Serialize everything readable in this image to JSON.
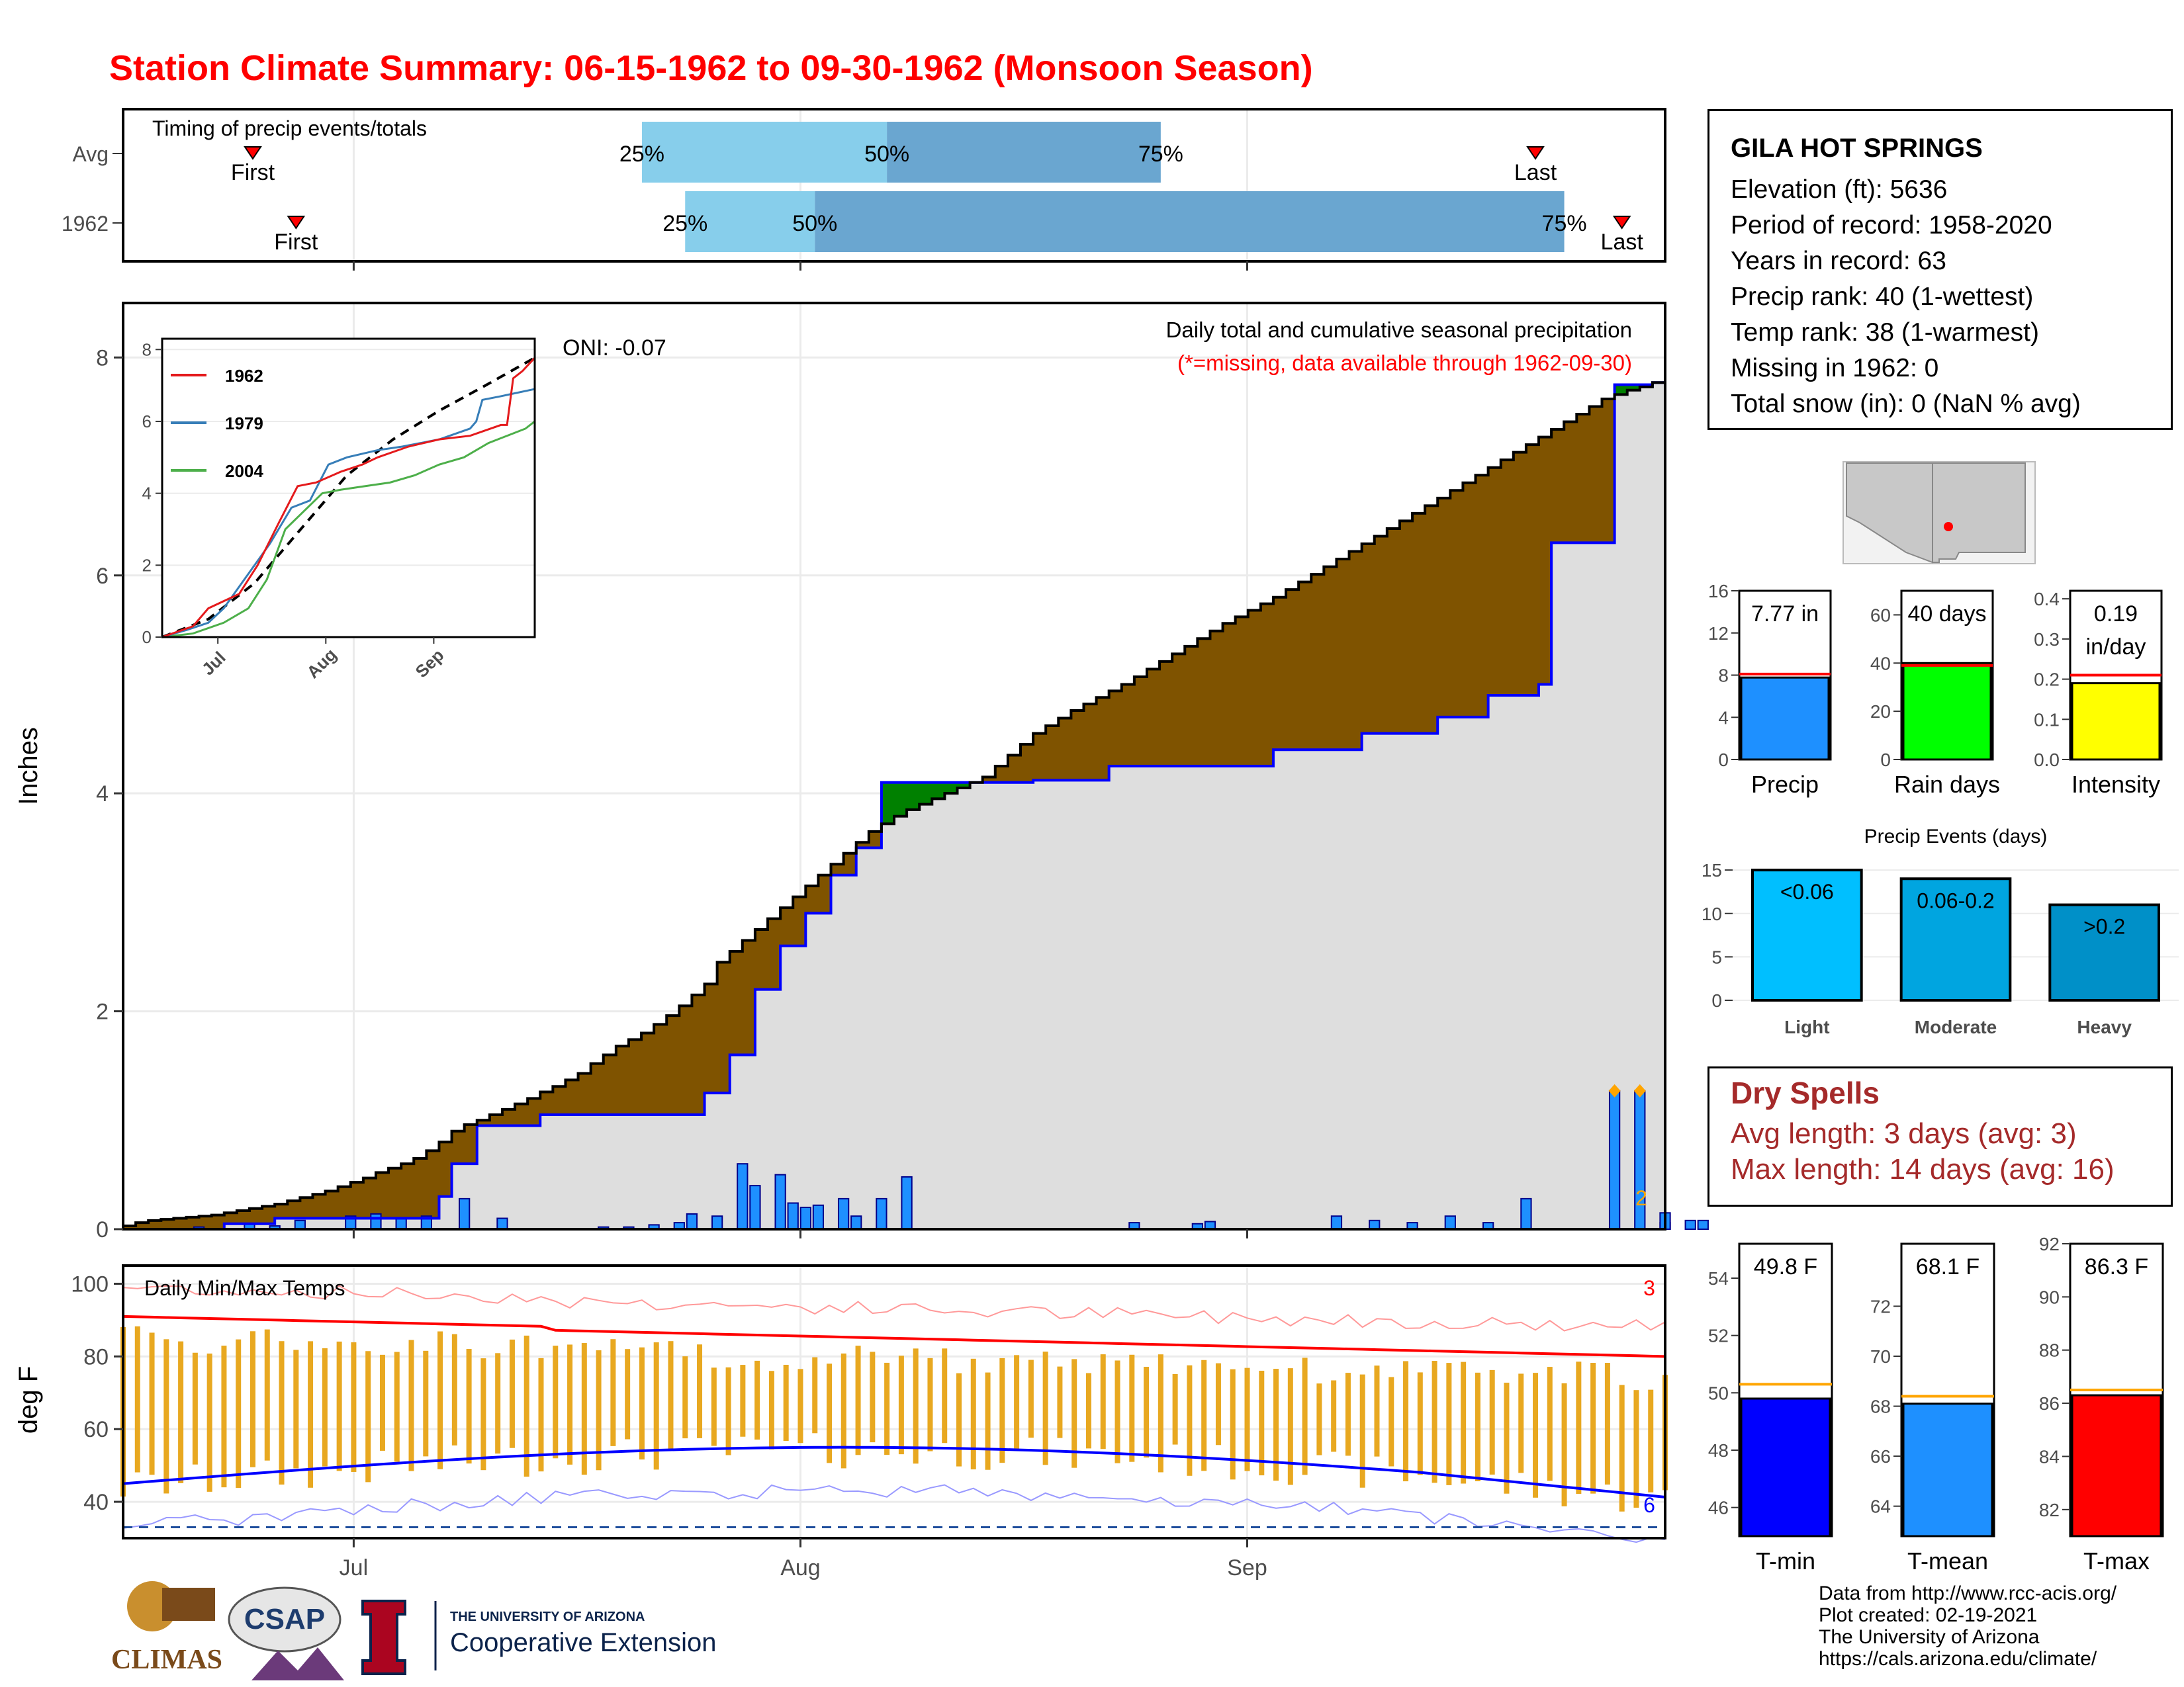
{
  "page": {
    "title": "Station Climate Summary: 06-15-1962 to 09-30-1962 (Monsoon Season)"
  },
  "colors": {
    "title": "#ff0000",
    "cumulative_above_avg": "#008000",
    "cumulative_below_avg": "#7f5300",
    "daily_bar": "#1e90ff",
    "avg_cumulative_line": "#0000ff",
    "tmax_avg": "#ff0000",
    "tmin_avg": "#0000ff",
    "temp_range_bar": "#e8a820",
    "quartile_light": "#87ceeb",
    "quartile_dark": "#6aa6d0"
  },
  "station": {
    "name": "GILA HOT SPRINGS",
    "lines": [
      "Elevation (ft): 5636",
      "Period of record: 1958-2020",
      "Years in record: 63",
      "Precip rank: 40 (1-wettest)",
      "Temp rank: 38 (1-warmest)",
      "Missing in 1962: 0",
      "Total snow (in): 0 (NaN % avg)"
    ]
  },
  "dry_spells": {
    "title": "Dry Spells",
    "avg_length": "Avg length: 3 days (avg: 3)",
    "max_length": "Max length: 14 days (avg: 16)"
  },
  "credits": [
    "Data from http://www.rcc-acis.org/",
    "Plot created: 02-19-2021",
    "The University of Arizona",
    "https://cals.arizona.edu/climate/"
  ],
  "logos": {
    "climas": "CLIMAS",
    "csap": "CSAP",
    "ua_top": "THE UNIVERSITY OF ARIZONA",
    "ua_bottom": "Cooperative Extension"
  },
  "chart_data": [
    {
      "id": "timing",
      "type": "bar",
      "title": "Timing of precip events/totals",
      "rows": [
        "Avg",
        "1962"
      ],
      "quartile_labels": [
        "25%",
        "50%",
        "75%"
      ],
      "event_labels": [
        "First",
        "Last"
      ],
      "avg": {
        "first": "06-24",
        "q25": "07-21",
        "q50": "08-07",
        "q75": "08-26",
        "last": "09-21"
      },
      "year": {
        "first": "06-27",
        "q25": "07-24",
        "q50": "08-02",
        "q75": "09-23",
        "last": "09-27"
      }
    },
    {
      "id": "precip",
      "type": "area",
      "title": "Daily total and cumulative seasonal precipitation",
      "subtitle": "(*=missing, data available through 1962-09-30)",
      "oni_label": "ONI: -0.07",
      "ylabel": "Inches",
      "ylim": [
        0,
        8.5
      ],
      "yticks": [
        0,
        2,
        4,
        6,
        8
      ],
      "x_ticks": [
        "Jul",
        "Aug",
        "Sep"
      ],
      "date_range": [
        "06-15",
        "09-30"
      ],
      "corner_label": "2",
      "cumulative_1962": [
        [
          0,
          0.03
        ],
        [
          1,
          0.06
        ],
        [
          2,
          0.08
        ],
        [
          3,
          0.09
        ],
        [
          4,
          0.1
        ],
        [
          5,
          0.11
        ],
        [
          6,
          0.12
        ],
        [
          7,
          0.13
        ],
        [
          8,
          0.15
        ],
        [
          9,
          0.17
        ],
        [
          10,
          0.19
        ],
        [
          11,
          0.21
        ],
        [
          12,
          0.23
        ],
        [
          13,
          0.26
        ],
        [
          14,
          0.29
        ],
        [
          15,
          0.32
        ],
        [
          16,
          0.35
        ],
        [
          17,
          0.39
        ],
        [
          18,
          0.43
        ],
        [
          19,
          0.47
        ],
        [
          20,
          0.52
        ],
        [
          21,
          0.56
        ],
        [
          22,
          0.6
        ],
        [
          23,
          0.65
        ],
        [
          24,
          0.72
        ],
        [
          25,
          0.8
        ],
        [
          26,
          0.9
        ],
        [
          27,
          0.96
        ],
        [
          28,
          1.0
        ],
        [
          29,
          1.05
        ],
        [
          30,
          1.1
        ],
        [
          31,
          1.15
        ],
        [
          32,
          1.2
        ],
        [
          33,
          1.26
        ],
        [
          34,
          1.31
        ],
        [
          35,
          1.37
        ],
        [
          36,
          1.43
        ],
        [
          37,
          1.52
        ],
        [
          38,
          1.6
        ],
        [
          39,
          1.68
        ],
        [
          40,
          1.74
        ],
        [
          41,
          1.8
        ],
        [
          42,
          1.88
        ],
        [
          43,
          1.96
        ],
        [
          44,
          2.05
        ],
        [
          45,
          2.15
        ],
        [
          46,
          2.25
        ],
        [
          47,
          2.45
        ],
        [
          48,
          2.55
        ],
        [
          49,
          2.65
        ],
        [
          50,
          2.75
        ],
        [
          51,
          2.85
        ],
        [
          52,
          2.95
        ],
        [
          53,
          3.05
        ],
        [
          54,
          3.15
        ],
        [
          55,
          3.25
        ],
        [
          56,
          3.35
        ],
        [
          57,
          3.45
        ],
        [
          58,
          3.55
        ],
        [
          59,
          3.65
        ],
        [
          60,
          3.72
        ],
        [
          61,
          3.79
        ],
        [
          62,
          3.85
        ],
        [
          63,
          3.9
        ],
        [
          64,
          3.95
        ],
        [
          65,
          4.0
        ],
        [
          66,
          4.05
        ],
        [
          67,
          4.1
        ],
        [
          68,
          4.15
        ],
        [
          69,
          4.25
        ],
        [
          70,
          4.35
        ],
        [
          71,
          4.45
        ],
        [
          72,
          4.55
        ],
        [
          73,
          4.62
        ],
        [
          74,
          4.69
        ],
        [
          75,
          4.76
        ],
        [
          76,
          4.82
        ],
        [
          77,
          4.88
        ],
        [
          78,
          4.94
        ],
        [
          79,
          5.0
        ],
        [
          80,
          5.07
        ],
        [
          81,
          5.14
        ],
        [
          82,
          5.21
        ],
        [
          83,
          5.28
        ],
        [
          84,
          5.35
        ],
        [
          85,
          5.42
        ],
        [
          86,
          5.49
        ],
        [
          87,
          5.56
        ],
        [
          88,
          5.62
        ],
        [
          89,
          5.68
        ],
        [
          90,
          5.74
        ],
        [
          91,
          5.8
        ],
        [
          92,
          5.87
        ],
        [
          93,
          5.94
        ],
        [
          94,
          6.01
        ],
        [
          95,
          6.08
        ],
        [
          96,
          6.15
        ],
        [
          97,
          6.22
        ],
        [
          98,
          6.29
        ],
        [
          99,
          6.36
        ],
        [
          100,
          6.43
        ],
        [
          101,
          6.5
        ],
        [
          102,
          6.57
        ],
        [
          103,
          6.64
        ],
        [
          104,
          6.71
        ],
        [
          105,
          6.78
        ],
        [
          106,
          6.85
        ],
        [
          107,
          6.92
        ],
        [
          108,
          6.99
        ],
        [
          109,
          7.06
        ],
        [
          110,
          7.13
        ],
        [
          111,
          7.2
        ],
        [
          112,
          7.27
        ],
        [
          113,
          7.34
        ],
        [
          114,
          7.41
        ],
        [
          115,
          7.48
        ],
        [
          116,
          7.55
        ],
        [
          117,
          7.62
        ],
        [
          118,
          7.66
        ],
        [
          119,
          7.7
        ],
        [
          120,
          7.73
        ],
        [
          121,
          7.77
        ]
      ],
      "cumulative_avg": [
        [
          0,
          0.0
        ],
        [
          7,
          0.0
        ],
        [
          8,
          0.05
        ],
        [
          11,
          0.05
        ],
        [
          12,
          0.1
        ],
        [
          20,
          0.1
        ],
        [
          25,
          0.3
        ],
        [
          26,
          0.6
        ],
        [
          28,
          0.95
        ],
        [
          33,
          1.05
        ],
        [
          40,
          1.05
        ],
        [
          42,
          1.05
        ],
        [
          46,
          1.25
        ],
        [
          48,
          1.6
        ],
        [
          50,
          2.2
        ],
        [
          52,
          2.6
        ],
        [
          54,
          2.9
        ],
        [
          56,
          3.25
        ],
        [
          58,
          3.5
        ],
        [
          60,
          4.1
        ],
        [
          66,
          4.1
        ],
        [
          72,
          4.12
        ],
        [
          78,
          4.25
        ],
        [
          84,
          4.25
        ],
        [
          91,
          4.4
        ],
        [
          98,
          4.55
        ],
        [
          104,
          4.7
        ],
        [
          108,
          4.9
        ],
        [
          112,
          5.0
        ],
        [
          113,
          6.3
        ],
        [
          118,
          7.75
        ],
        [
          121,
          7.77
        ]
      ],
      "daily_bars": [
        [
          6,
          0.02
        ],
        [
          10,
          0.05
        ],
        [
          12,
          0.03
        ],
        [
          14,
          0.08
        ],
        [
          18,
          0.12
        ],
        [
          20,
          0.14
        ],
        [
          22,
          0.1
        ],
        [
          24,
          0.12
        ],
        [
          27,
          0.28
        ],
        [
          30,
          0.1
        ],
        [
          38,
          0.02
        ],
        [
          40,
          0.02
        ],
        [
          42,
          0.04
        ],
        [
          44,
          0.06
        ],
        [
          45,
          0.14
        ],
        [
          47,
          0.12
        ],
        [
          49,
          0.6
        ],
        [
          50,
          0.4
        ],
        [
          52,
          0.5
        ],
        [
          53,
          0.24
        ],
        [
          54,
          0.2
        ],
        [
          55,
          0.22
        ],
        [
          57,
          0.28
        ],
        [
          58,
          0.12
        ],
        [
          60,
          0.28
        ],
        [
          62,
          0.48
        ],
        [
          80,
          0.06
        ],
        [
          85,
          0.05
        ],
        [
          86,
          0.07
        ],
        [
          96,
          0.12
        ],
        [
          99,
          0.08
        ],
        [
          102,
          0.06
        ],
        [
          105,
          0.12
        ],
        [
          108,
          0.06
        ],
        [
          111,
          0.28
        ],
        [
          122,
          0.06
        ],
        [
          125,
          0.08
        ],
        [
          124,
          0.08
        ]
      ],
      "big_bars": [
        [
          118,
          1.27
        ],
        [
          120,
          1.27
        ],
        [
          122,
          0.15
        ]
      ],
      "inset": {
        "type": "line",
        "legend": [
          "1962",
          "1979",
          "2004"
        ],
        "yticks": [
          0,
          2,
          4,
          6,
          8
        ],
        "x_ticks": [
          "Jul",
          "Aug",
          "Sep"
        ],
        "series_1962": [
          [
            0,
            0
          ],
          [
            10,
            0.3
          ],
          [
            15,
            0.8
          ],
          [
            25,
            1.2
          ],
          [
            31,
            2.0
          ],
          [
            38,
            3.2
          ],
          [
            44,
            4.2
          ],
          [
            50,
            4.3
          ],
          [
            58,
            4.6
          ],
          [
            65,
            4.8
          ],
          [
            70,
            5.0
          ],
          [
            80,
            5.3
          ],
          [
            90,
            5.5
          ],
          [
            100,
            5.6
          ],
          [
            110,
            5.9
          ],
          [
            112,
            5.9
          ],
          [
            114,
            7.2
          ],
          [
            117,
            7.4
          ],
          [
            121,
            7.77
          ]
        ],
        "series_1979": [
          [
            0,
            0
          ],
          [
            8,
            0.2
          ],
          [
            15,
            0.4
          ],
          [
            20,
            0.8
          ],
          [
            30,
            2.0
          ],
          [
            35,
            2.6
          ],
          [
            42,
            3.6
          ],
          [
            48,
            3.8
          ],
          [
            54,
            4.8
          ],
          [
            60,
            5.0
          ],
          [
            70,
            5.2
          ],
          [
            78,
            5.3
          ],
          [
            90,
            5.5
          ],
          [
            100,
            5.8
          ],
          [
            102,
            6.0
          ],
          [
            104,
            6.6
          ],
          [
            110,
            6.7
          ],
          [
            121,
            6.9
          ]
        ],
        "series_2004": [
          [
            0,
            0
          ],
          [
            10,
            0.1
          ],
          [
            20,
            0.4
          ],
          [
            28,
            0.8
          ],
          [
            34,
            1.6
          ],
          [
            40,
            3.0
          ],
          [
            46,
            3.5
          ],
          [
            52,
            4.0
          ],
          [
            58,
            4.1
          ],
          [
            66,
            4.2
          ],
          [
            74,
            4.3
          ],
          [
            82,
            4.5
          ],
          [
            90,
            4.8
          ],
          [
            98,
            5.0
          ],
          [
            106,
            5.4
          ],
          [
            112,
            5.6
          ],
          [
            118,
            5.8
          ],
          [
            121,
            6.0
          ]
        ],
        "series_avg": [
          [
            0,
            0
          ],
          [
            15,
            0.5
          ],
          [
            30,
            1.5
          ],
          [
            45,
            3.0
          ],
          [
            60,
            4.5
          ],
          [
            75,
            5.5
          ],
          [
            90,
            6.3
          ],
          [
            105,
            7.0
          ],
          [
            121,
            7.77
          ]
        ]
      }
    },
    {
      "id": "temps",
      "type": "bar",
      "title": "Daily Min/Max Temps",
      "ylabel": "deg F",
      "ylim": [
        30,
        105
      ],
      "yticks": [
        40,
        60,
        80,
        100
      ],
      "x_ticks": [
        "Jul",
        "Aug",
        "Sep"
      ],
      "count_top": "3",
      "count_bottom": "6",
      "freeze_line": 33
    },
    {
      "id": "gauges",
      "type": "bar",
      "panels": [
        {
          "label": "Precip",
          "value": 7.77,
          "avg": 8.1,
          "text": "7.77 in",
          "ylim": [
            0,
            16
          ],
          "yticks": [
            0,
            4,
            8,
            12,
            16
          ],
          "color": "#1e90ff"
        },
        {
          "label": "Rain days",
          "value": 40,
          "avg": 39,
          "text": "40 days",
          "ylim": [
            0,
            70
          ],
          "yticks": [
            0,
            20,
            40,
            60
          ],
          "color": "#00ff00"
        },
        {
          "label": "Intensity",
          "value": 0.19,
          "avg": 0.21,
          "text": "0.19 in/day",
          "ylim": [
            0,
            0.42
          ],
          "yticks": [
            0.0,
            0.1,
            0.2,
            0.3,
            0.4
          ],
          "color": "#ffff00"
        }
      ]
    },
    {
      "id": "events",
      "type": "bar",
      "title": "Precip Events (days)",
      "categories": [
        "Light",
        "Moderate",
        "Heavy"
      ],
      "values": [
        15,
        14,
        11
      ],
      "labels": [
        "<0.06",
        "0.06-0.2",
        ">0.2"
      ],
      "yticks": [
        0,
        5,
        10,
        15
      ],
      "colors": [
        "#00bfff",
        "#00a5e0",
        "#0090c8"
      ]
    },
    {
      "id": "temp_gauges",
      "type": "bar",
      "panels": [
        {
          "label": "T-min",
          "value": 49.8,
          "avg": 50.3,
          "text": "49.8 F",
          "ylim": [
            45,
            55.2
          ],
          "yticks": [
            46,
            48,
            50,
            52,
            54
          ],
          "color": "#0000ff"
        },
        {
          "label": "T-mean",
          "value": 68.1,
          "avg": 68.4,
          "text": "68.1 F",
          "ylim": [
            62.8,
            74.5
          ],
          "yticks": [
            64,
            66,
            68,
            70,
            72
          ],
          "color": "#1e90ff"
        },
        {
          "label": "T-max",
          "value": 86.3,
          "avg": 86.5,
          "text": "86.3 F",
          "ylim": [
            81,
            92
          ],
          "yticks": [
            82,
            84,
            86,
            88,
            90,
            92
          ],
          "color": "#ff0000"
        }
      ]
    }
  ]
}
